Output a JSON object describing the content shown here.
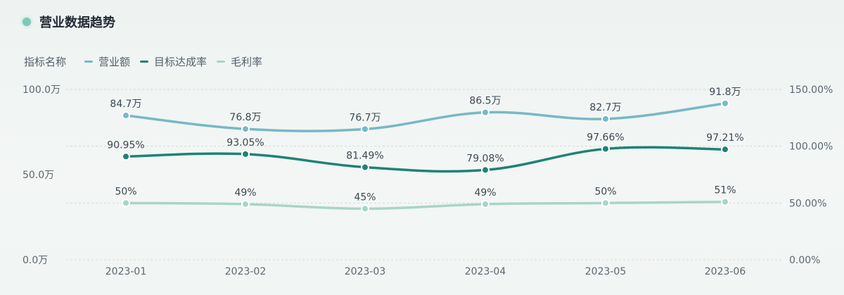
{
  "header": {
    "title": "营业数据趋势"
  },
  "legend": {
    "label": "指标名称",
    "items": [
      {
        "name": "营业额",
        "color": "#76b9c6"
      },
      {
        "name": "目标达成率",
        "color": "#1e8374"
      },
      {
        "name": "毛利率",
        "color": "#a8d5c8"
      }
    ]
  },
  "chart_data": {
    "type": "line",
    "categories": [
      "2023-01",
      "2023-02",
      "2023-03",
      "2023-04",
      "2023-05",
      "2023-06"
    ],
    "y_left": {
      "range": [
        0,
        100
      ],
      "ticks": [
        "0.0万",
        "50.0万",
        "100.0万"
      ]
    },
    "y_right": {
      "range": [
        0,
        150
      ],
      "ticks": [
        "0.00%",
        "50.00%",
        "100.00%",
        "150.00%"
      ]
    },
    "grid": true,
    "legend_position": "top-left",
    "series": [
      {
        "name": "营业额",
        "axis": "left",
        "color": "#76b9c6",
        "values": [
          84.7,
          76.8,
          76.7,
          86.5,
          82.7,
          91.8
        ],
        "labels": [
          "84.7万",
          "76.8万",
          "76.7万",
          "86.5万",
          "82.7万",
          "91.8万"
        ]
      },
      {
        "name": "目标达成率",
        "axis": "right",
        "color": "#1e8374",
        "values": [
          90.95,
          93.05,
          81.49,
          79.08,
          97.66,
          97.21
        ],
        "labels": [
          "90.95%",
          "93.05%",
          "81.49%",
          "79.08%",
          "97.66%",
          "97.21%"
        ]
      },
      {
        "name": "毛利率",
        "axis": "right",
        "color": "#a8d5c8",
        "values": [
          50,
          49,
          45,
          49,
          50,
          51
        ],
        "labels": [
          "50%",
          "49%",
          "45%",
          "49%",
          "50%",
          "51%"
        ]
      }
    ]
  }
}
